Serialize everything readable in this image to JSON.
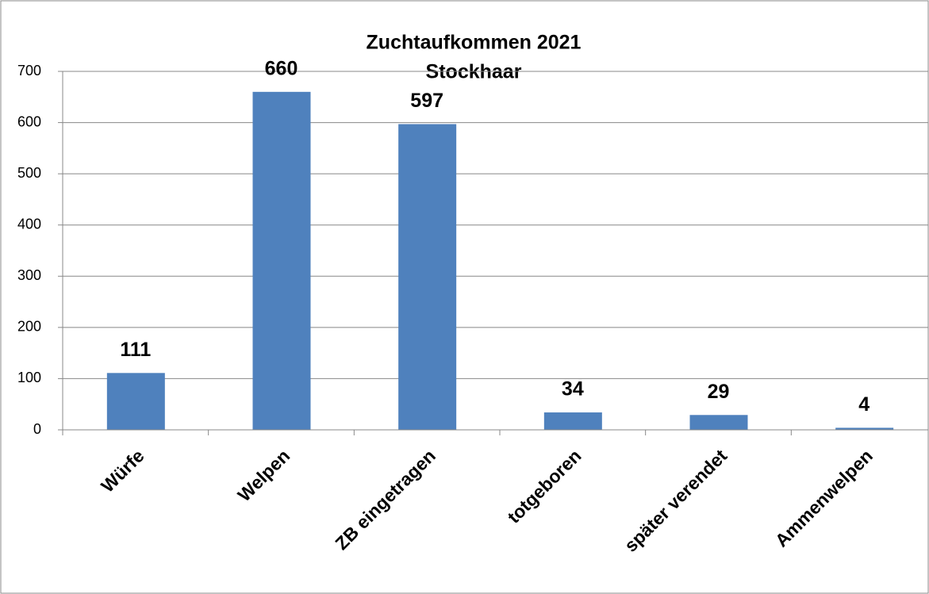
{
  "chart_data": {
    "type": "bar",
    "title": "Zuchtaufkommen 2021",
    "subtitle": "Stockhaar",
    "categories": [
      "Würfe",
      "Welpen",
      "ZB eingetragen",
      "totgeboren",
      "später verendet",
      "Ammenwelpen"
    ],
    "values": [
      111,
      660,
      597,
      34,
      29,
      4
    ],
    "color": "#4f81bd",
    "ylim": [
      0,
      700
    ],
    "yticks": [
      0,
      100,
      200,
      300,
      400,
      500,
      600,
      700
    ],
    "grid": true
  }
}
